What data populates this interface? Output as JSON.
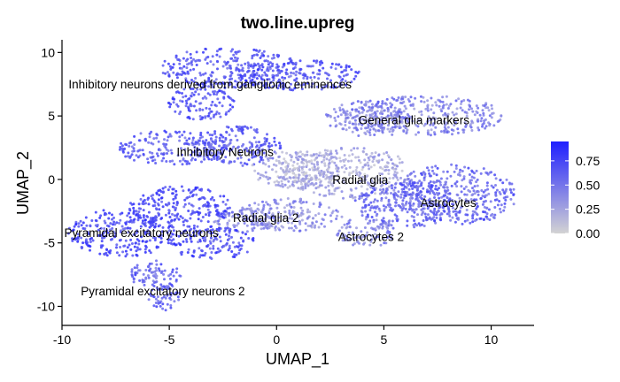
{
  "chart_data": {
    "type": "scatter",
    "title": "two.line.upreg",
    "xlabel": "UMAP_1",
    "ylabel": "UMAP_2",
    "xlim": [
      -10,
      12
    ],
    "ylim": [
      -11.5,
      11
    ],
    "xticks": [
      -10,
      -5,
      0,
      5,
      10
    ],
    "yticks": [
      -10,
      -5,
      0,
      5,
      10
    ],
    "grid": false,
    "color_scale": {
      "low": "#d3d3d3",
      "high": "#1f1fff",
      "range": [
        0,
        0.95
      ],
      "ticks": [
        0.0,
        0.25,
        0.5,
        0.75
      ],
      "tick_labels": [
        "0.00",
        "0.25",
        "0.50",
        "0.75"
      ]
    },
    "legend_position": "right",
    "clusters": [
      {
        "label": "Inhibitory neurons derived from ganglionic eminences",
        "label_x": -3.1,
        "label_y": 7.5,
        "parts": [
          {
            "x": -2.2,
            "y": 8.8,
            "rx": 3.2,
            "ry": 1.6
          },
          {
            "x": 1.0,
            "y": 8.2,
            "rx": 3.0,
            "ry": 1.2
          },
          {
            "x": -3.5,
            "y": 6.0,
            "rx": 1.6,
            "ry": 1.3
          }
        ],
        "mean_score": 0.65
      },
      {
        "label": "General glia markers",
        "label_x": 6.4,
        "label_y": 4.7,
        "parts": [
          {
            "x": 6.8,
            "y": 5.0,
            "rx": 3.8,
            "ry": 1.6
          },
          {
            "x": 4.2,
            "y": 4.8,
            "rx": 2.0,
            "ry": 1.4
          }
        ],
        "mean_score": 0.4
      },
      {
        "label": "Inhibitory Neurons",
        "label_x": -2.4,
        "label_y": 2.2,
        "parts": [
          {
            "x": -4.8,
            "y": 2.5,
            "rx": 2.6,
            "ry": 1.4
          },
          {
            "x": -1.8,
            "y": 2.6,
            "rx": 2.0,
            "ry": 1.6
          }
        ],
        "mean_score": 0.6
      },
      {
        "label": "Radial glia",
        "label_x": 3.9,
        "label_y": 0.0,
        "parts": [
          {
            "x": 3.4,
            "y": 0.5,
            "rx": 3.0,
            "ry": 2.0
          },
          {
            "x": 1.0,
            "y": 0.8,
            "rx": 2.2,
            "ry": 1.5
          }
        ],
        "mean_score": 0.2
      },
      {
        "label": "Astrocytes",
        "label_x": 8.0,
        "label_y": -1.8,
        "parts": [
          {
            "x": 8.3,
            "y": -1.2,
            "rx": 2.9,
            "ry": 2.4
          },
          {
            "x": 6.0,
            "y": -2.0,
            "rx": 2.4,
            "ry": 1.8
          }
        ],
        "mean_score": 0.55
      },
      {
        "label": "Astrocytes 2",
        "label_x": 4.4,
        "label_y": -4.5,
        "parts": [
          {
            "x": 4.2,
            "y": -4.2,
            "rx": 1.4,
            "ry": 1.2
          }
        ],
        "mean_score": 0.4
      },
      {
        "label": "Radial glia 2",
        "label_x": -0.5,
        "label_y": -3.0,
        "parts": [
          {
            "x": 0.6,
            "y": -2.8,
            "rx": 2.5,
            "ry": 1.3
          },
          {
            "x": -1.5,
            "y": -3.2,
            "rx": 1.5,
            "ry": 1.0
          }
        ],
        "mean_score": 0.35
      },
      {
        "label": "Pyramidal excitatory neurons",
        "label_x": -6.3,
        "label_y": -4.2,
        "parts": [
          {
            "x": -7.2,
            "y": -4.2,
            "rx": 2.5,
            "ry": 1.9
          },
          {
            "x": -4.5,
            "y": -2.2,
            "rx": 2.4,
            "ry": 1.7
          },
          {
            "x": -3.0,
            "y": -5.0,
            "rx": 2.0,
            "ry": 1.3
          }
        ],
        "mean_score": 0.7
      },
      {
        "label": "Pyramidal excitatory neurons 2",
        "label_x": -5.3,
        "label_y": -8.8,
        "parts": [
          {
            "x": -5.6,
            "y": -7.5,
            "rx": 1.3,
            "ry": 1.2
          },
          {
            "x": -5.2,
            "y": -9.2,
            "rx": 0.8,
            "ry": 1.1
          }
        ],
        "mean_score": 0.6
      }
    ]
  }
}
